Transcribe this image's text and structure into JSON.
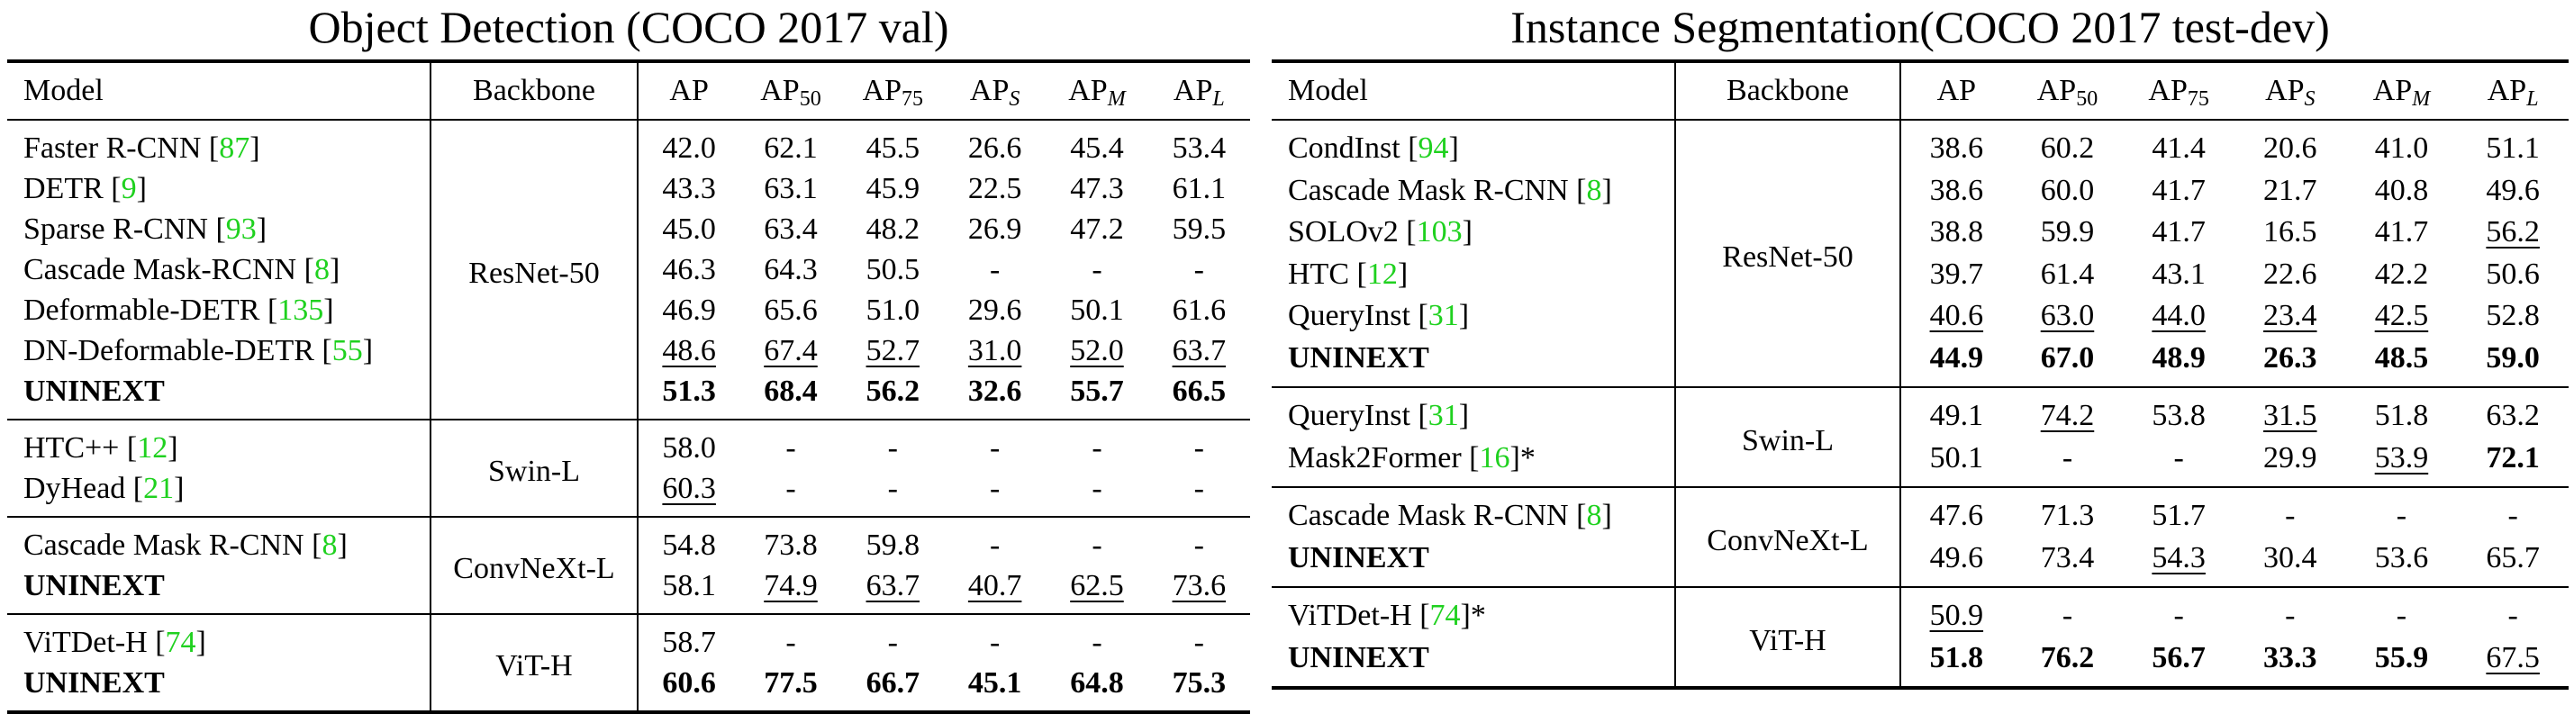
{
  "left": {
    "title": "Object Detection (COCO 2017 val)",
    "headers": {
      "model": "Model",
      "backbone": "Backbone",
      "cols": [
        {
          "main": "AP",
          "sub": "",
          "italic": false
        },
        {
          "main": "AP",
          "sub": "50",
          "italic": false
        },
        {
          "main": "AP",
          "sub": "75",
          "italic": false
        },
        {
          "main": "AP",
          "sub": "S",
          "italic": true
        },
        {
          "main": "AP",
          "sub": "M",
          "italic": true
        },
        {
          "main": "AP",
          "sub": "L",
          "italic": true
        }
      ]
    },
    "groups": [
      {
        "backbone": "ResNet-50",
        "rows": [
          {
            "name": "Faster R-CNN",
            "ref": "87",
            "suffix": "",
            "bold": false,
            "values": [
              "42.0",
              "62.1",
              "45.5",
              "26.6",
              "45.4",
              "53.4"
            ],
            "underline": []
          },
          {
            "name": "DETR",
            "ref": "9",
            "suffix": "",
            "bold": false,
            "values": [
              "43.3",
              "63.1",
              "45.9",
              "22.5",
              "47.3",
              "61.1"
            ],
            "underline": []
          },
          {
            "name": "Sparse R-CNN",
            "ref": "93",
            "suffix": "",
            "bold": false,
            "values": [
              "45.0",
              "63.4",
              "48.2",
              "26.9",
              "47.2",
              "59.5"
            ],
            "underline": []
          },
          {
            "name": "Cascade Mask-RCNN",
            "ref": "8",
            "suffix": "",
            "bold": false,
            "values": [
              "46.3",
              "64.3",
              "50.5",
              "-",
              "-",
              "-"
            ],
            "underline": []
          },
          {
            "name": "Deformable-DETR",
            "ref": "135",
            "suffix": "",
            "bold": false,
            "values": [
              "46.9",
              "65.6",
              "51.0",
              "29.6",
              "50.1",
              "61.6"
            ],
            "underline": []
          },
          {
            "name": "DN-Deformable-DETR",
            "ref": "55",
            "suffix": "",
            "bold": false,
            "values": [
              "48.6",
              "67.4",
              "52.7",
              "31.0",
              "52.0",
              "63.7"
            ],
            "underline": [
              0,
              1,
              2,
              3,
              4,
              5
            ]
          },
          {
            "name": "UNINEXT",
            "ref": "",
            "suffix": "",
            "bold": true,
            "values": [
              "51.3",
              "68.4",
              "56.2",
              "32.6",
              "55.7",
              "66.5"
            ],
            "underline": []
          }
        ]
      },
      {
        "backbone": "Swin-L",
        "rows": [
          {
            "name": "HTC++",
            "ref": "12",
            "suffix": "",
            "bold": false,
            "values": [
              "58.0",
              "-",
              "-",
              "-",
              "-",
              "-"
            ],
            "underline": []
          },
          {
            "name": "DyHead",
            "ref": "21",
            "suffix": "",
            "bold": false,
            "values": [
              "60.3",
              "-",
              "-",
              "-",
              "-",
              "-"
            ],
            "underline": [
              0
            ]
          }
        ]
      },
      {
        "backbone": "ConvNeXt-L",
        "rows": [
          {
            "name": "Cascade Mask R-CNN",
            "ref": "8",
            "suffix": "",
            "bold": false,
            "values": [
              "54.8",
              "73.8",
              "59.8",
              "-",
              "-",
              "-"
            ],
            "underline": []
          },
          {
            "name": "UNINEXT",
            "ref": "",
            "suffix": "",
            "bold": true,
            "bold_values": false,
            "values": [
              "58.1",
              "74.9",
              "63.7",
              "40.7",
              "62.5",
              "73.6"
            ],
            "underline": [
              1,
              2,
              3,
              4,
              5
            ]
          }
        ]
      },
      {
        "backbone": "ViT-H",
        "rows": [
          {
            "name": "ViTDet-H",
            "ref": "74",
            "suffix": "",
            "bold": false,
            "values": [
              "58.7",
              "-",
              "-",
              "-",
              "-",
              "-"
            ],
            "underline": []
          },
          {
            "name": "UNINEXT",
            "ref": "",
            "suffix": "",
            "bold": true,
            "values": [
              "60.6",
              "77.5",
              "66.7",
              "45.1",
              "64.8",
              "75.3"
            ],
            "underline": []
          }
        ]
      }
    ]
  },
  "right": {
    "title": "Instance Segmentation(COCO 2017 test-dev)",
    "headers": {
      "model": "Model",
      "backbone": "Backbone",
      "cols": [
        {
          "main": "AP",
          "sub": "",
          "italic": false
        },
        {
          "main": "AP",
          "sub": "50",
          "italic": false
        },
        {
          "main": "AP",
          "sub": "75",
          "italic": false
        },
        {
          "main": "AP",
          "sub": "S",
          "italic": true
        },
        {
          "main": "AP",
          "sub": "M",
          "italic": true
        },
        {
          "main": "AP",
          "sub": "L",
          "italic": true
        }
      ]
    },
    "groups": [
      {
        "backbone": "ResNet-50",
        "rows": [
          {
            "name": "CondInst",
            "ref": "94",
            "suffix": "",
            "bold": false,
            "values": [
              "38.6",
              "60.2",
              "41.4",
              "20.6",
              "41.0",
              "51.1"
            ],
            "underline": []
          },
          {
            "name": "Cascade Mask R-CNN",
            "ref": "8",
            "suffix": "",
            "bold": false,
            "values": [
              "38.6",
              "60.0",
              "41.7",
              "21.7",
              "40.8",
              "49.6"
            ],
            "underline": []
          },
          {
            "name": "SOLOv2",
            "ref": "103",
            "suffix": "",
            "bold": false,
            "values": [
              "38.8",
              "59.9",
              "41.7",
              "16.5",
              "41.7",
              "56.2"
            ],
            "underline": [
              5
            ]
          },
          {
            "name": "HTC",
            "ref": "12",
            "suffix": "",
            "bold": false,
            "values": [
              "39.7",
              "61.4",
              "43.1",
              "22.6",
              "42.2",
              "50.6"
            ],
            "underline": []
          },
          {
            "name": "QueryInst",
            "ref": "31",
            "suffix": "",
            "bold": false,
            "values": [
              "40.6",
              "63.0",
              "44.0",
              "23.4",
              "42.5",
              "52.8"
            ],
            "underline": [
              0,
              1,
              2,
              3,
              4
            ]
          },
          {
            "name": "UNINEXT",
            "ref": "",
            "suffix": "",
            "bold": true,
            "values": [
              "44.9",
              "67.0",
              "48.9",
              "26.3",
              "48.5",
              "59.0"
            ],
            "underline": []
          }
        ]
      },
      {
        "backbone": "Swin-L",
        "rows": [
          {
            "name": "QueryInst",
            "ref": "31",
            "suffix": "",
            "bold": false,
            "values": [
              "49.1",
              "74.2",
              "53.8",
              "31.5",
              "51.8",
              "63.2"
            ],
            "underline": [
              1,
              3
            ]
          },
          {
            "name": "Mask2Former",
            "ref": "16",
            "suffix": "*",
            "bold": false,
            "values": [
              "50.1",
              "-",
              "-",
              "29.9",
              "53.9",
              "72.1"
            ],
            "underline": [
              4
            ],
            "bold_cells": [
              5
            ]
          }
        ]
      },
      {
        "backbone": "ConvNeXt-L",
        "rows": [
          {
            "name": "Cascade Mask R-CNN",
            "ref": "8",
            "suffix": "",
            "bold": false,
            "values": [
              "47.6",
              "71.3",
              "51.7",
              "-",
              "-",
              "-"
            ],
            "underline": []
          },
          {
            "name": "UNINEXT",
            "ref": "",
            "suffix": "",
            "bold": true,
            "bold_values": false,
            "values": [
              "49.6",
              "73.4",
              "54.3",
              "30.4",
              "53.6",
              "65.7"
            ],
            "underline": [
              2
            ]
          }
        ]
      },
      {
        "backbone": "ViT-H",
        "rows": [
          {
            "name": "ViTDet-H",
            "ref": "74",
            "suffix": "*",
            "bold": false,
            "values": [
              "50.9",
              "-",
              "-",
              "-",
              "-",
              "-"
            ],
            "underline": [
              0
            ]
          },
          {
            "name": "UNINEXT",
            "ref": "",
            "suffix": "",
            "bold": true,
            "values": [
              "51.8",
              "76.2",
              "56.7",
              "33.3",
              "55.9",
              "67.5"
            ],
            "underline": [
              5
            ],
            "plain_cells": [
              5
            ]
          }
        ]
      }
    ]
  }
}
